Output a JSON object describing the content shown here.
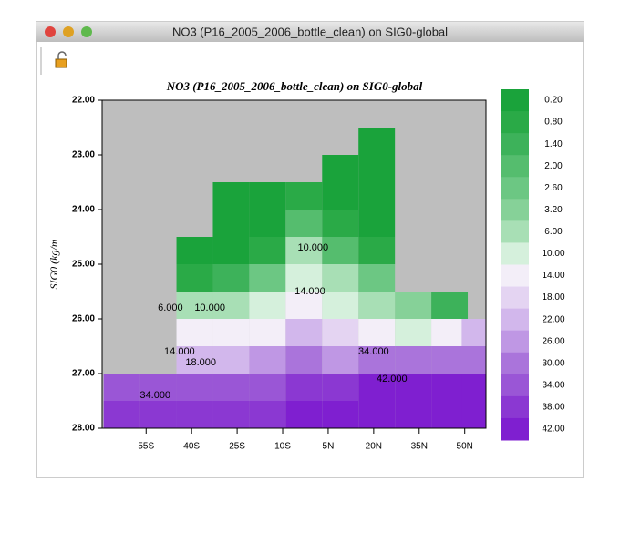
{
  "window": {
    "title": "NO3 (P16_2005_2006_bottle_clean) on SIG0-global"
  },
  "chart_data": {
    "type": "contour",
    "title": "NO3 (P16_2005_2006_bottle_clean) on SIG0-global",
    "y_label": "SIG0 (kg/m",
    "xlim": [
      -69.5,
      57
    ],
    "ylim": [
      28,
      22
    ],
    "xticks": [
      {
        "value": -55,
        "label": "55S"
      },
      {
        "value": -40,
        "label": "40S"
      },
      {
        "value": -25,
        "label": "25S"
      },
      {
        "value": -10,
        "label": "10S"
      },
      {
        "value": 5,
        "label": "5N"
      },
      {
        "value": 20,
        "label": "20N"
      },
      {
        "value": 35,
        "label": "35N"
      },
      {
        "value": 50,
        "label": "50N"
      }
    ],
    "yticks": [
      {
        "value": 22,
        "label": "22.00"
      },
      {
        "value": 23,
        "label": "23.00"
      },
      {
        "value": 24,
        "label": "24.00"
      },
      {
        "value": 25,
        "label": "25.00"
      },
      {
        "value": 26,
        "label": "26.00"
      },
      {
        "value": 27,
        "label": "27.00"
      },
      {
        "value": 28,
        "label": "28.00"
      }
    ],
    "x": [
      -63,
      -51,
      -39,
      -27,
      -15,
      -3,
      9,
      21,
      33,
      45,
      55
    ],
    "y": [
      22.25,
      22.75,
      23.25,
      23.75,
      24.25,
      24.75,
      25.25,
      25.75,
      26.25,
      26.75,
      27.25,
      27.75
    ],
    "z": [
      [
        null,
        null,
        null,
        null,
        null,
        null,
        null,
        null,
        null,
        null,
        null
      ],
      [
        null,
        null,
        null,
        null,
        null,
        null,
        null,
        0.2,
        null,
        null,
        null
      ],
      [
        null,
        null,
        null,
        null,
        null,
        null,
        0.2,
        0.2,
        null,
        null,
        null
      ],
      [
        null,
        null,
        null,
        0.2,
        0.2,
        0.8,
        0.2,
        0.2,
        null,
        null,
        null
      ],
      [
        null,
        null,
        null,
        0.2,
        0.2,
        2,
        0.8,
        0.2,
        null,
        null,
        null
      ],
      [
        null,
        null,
        0.2,
        0.2,
        0.8,
        6,
        2,
        0.8,
        null,
        null,
        null
      ],
      [
        null,
        null,
        0.8,
        1.4,
        2.6,
        10,
        6,
        2.6,
        null,
        null,
        null
      ],
      [
        null,
        null,
        6,
        6,
        8,
        14,
        10,
        6,
        3.2,
        1.4,
        null
      ],
      [
        null,
        null,
        14,
        12,
        14,
        20,
        18,
        14,
        10,
        12,
        22
      ],
      [
        null,
        null,
        22,
        22,
        24,
        28,
        26,
        30,
        30,
        30,
        30
      ],
      [
        34,
        34,
        34,
        34,
        34,
        38,
        38,
        42,
        42,
        42,
        42
      ],
      [
        38,
        38,
        38,
        38,
        38,
        42,
        42,
        42,
        42,
        42,
        42
      ]
    ],
    "levels": [
      {
        "value": 0.2,
        "label": "0.20"
      },
      {
        "value": 0.8,
        "label": "0.80"
      },
      {
        "value": 1.4,
        "label": "1.40"
      },
      {
        "value": 2,
        "label": "2.00"
      },
      {
        "value": 2.6,
        "label": "2.60"
      },
      {
        "value": 3.2,
        "label": "3.20"
      },
      {
        "value": 6,
        "label": "6.00"
      },
      {
        "value": 10,
        "label": "10.00"
      },
      {
        "value": 14,
        "label": "14.00"
      },
      {
        "value": 18,
        "label": "18.00"
      },
      {
        "value": 22,
        "label": "22.00"
      },
      {
        "value": 26,
        "label": "26.00"
      },
      {
        "value": 30,
        "label": "30.00"
      },
      {
        "value": 34,
        "label": "34.00"
      },
      {
        "value": 38,
        "label": "38.00"
      },
      {
        "value": 42,
        "label": "42.00"
      }
    ],
    "colors": [
      "#1aa33b",
      "#2aaa47",
      "#3db25a",
      "#55bd6e",
      "#6cc783",
      "#86d198",
      "#a8dfb5",
      "#d5f0dc",
      "#f3eef8",
      "#e4d4f2",
      "#d2b7ec",
      "#bf97e4",
      "#aa74db",
      "#9a56d6",
      "#8b38d2",
      "#7f1fd0"
    ],
    "missing_color": "#bebebe",
    "contour_labels": [
      {
        "label": "6.000",
        "x": -47,
        "y": 25.8
      },
      {
        "label": "10.000",
        "x": -34,
        "y": 25.8
      },
      {
        "label": "14.000",
        "x": -44,
        "y": 26.6
      },
      {
        "label": "18.000",
        "x": -37,
        "y": 26.8
      },
      {
        "label": "34.000",
        "x": -52,
        "y": 27.4
      },
      {
        "label": "42.000",
        "x": 26,
        "y": 27.1
      },
      {
        "label": "34.000",
        "x": 20,
        "y": 26.6
      },
      {
        "label": "10.000",
        "x": 0,
        "y": 24.7
      },
      {
        "label": "14.000",
        "x": -1,
        "y": 25.5
      }
    ]
  }
}
